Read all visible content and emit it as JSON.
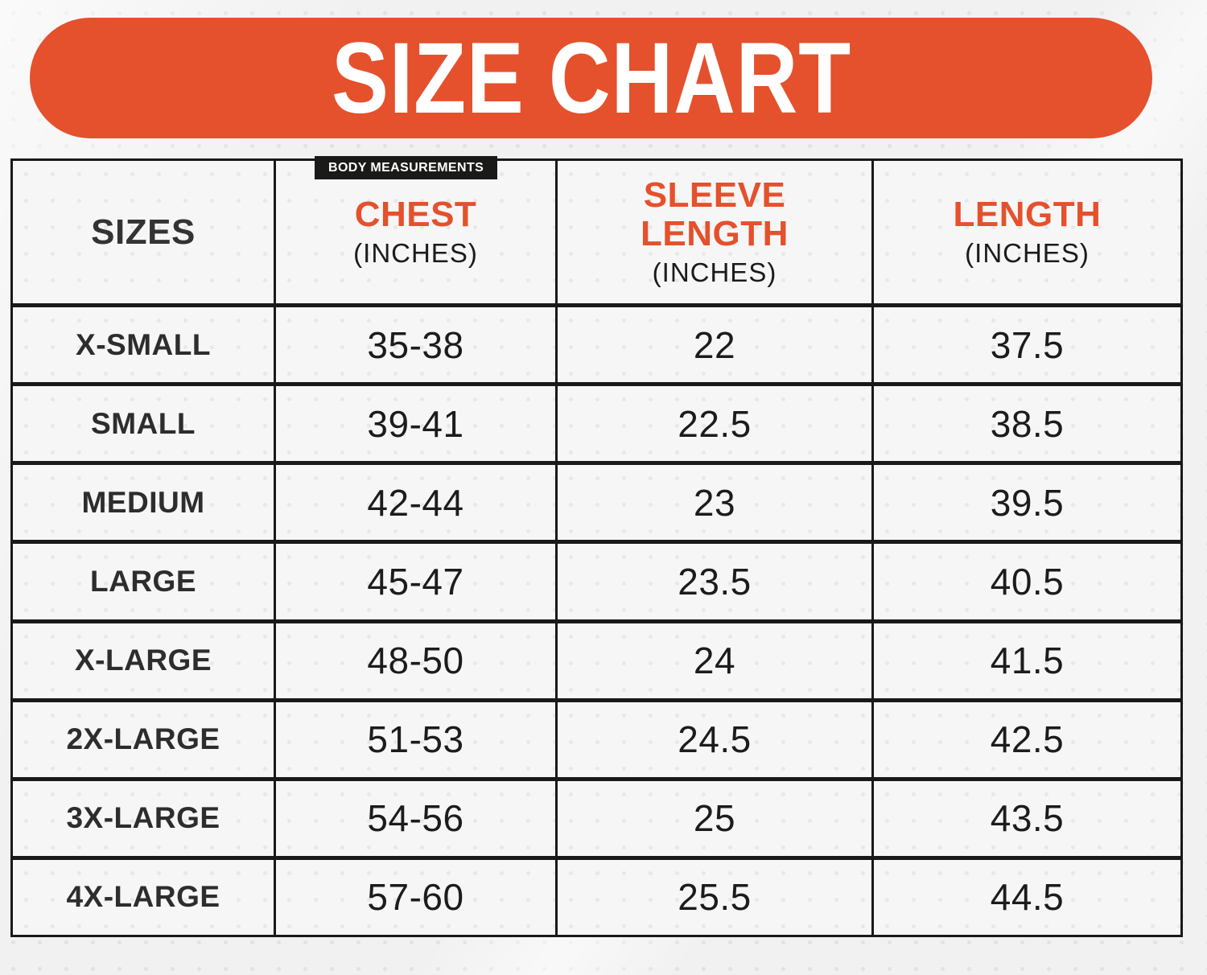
{
  "title": "SIZE CHART",
  "badge_label": "BODY MEASUREMENTS",
  "colors": {
    "accent": "#E4512C",
    "badge_bg": "#1A1A19",
    "table_border": "#191919",
    "title_text": "#FFFFFF"
  },
  "table": {
    "columns": [
      {
        "label": "SIZES",
        "sublabel": ""
      },
      {
        "label": "CHEST",
        "sublabel": "(INCHES)"
      },
      {
        "label": "SLEEVE LENGTH",
        "sublabel": "(INCHES)"
      },
      {
        "label": "LENGTH",
        "sublabel": "(INCHES)"
      }
    ],
    "rows": [
      {
        "size": "X-SMALL",
        "chest": "35-38",
        "sleeve": "22",
        "length": "37.5"
      },
      {
        "size": "SMALL",
        "chest": "39-41",
        "sleeve": "22.5",
        "length": "38.5"
      },
      {
        "size": "MEDIUM",
        "chest": "42-44",
        "sleeve": "23",
        "length": "39.5"
      },
      {
        "size": "LARGE",
        "chest": "45-47",
        "sleeve": "23.5",
        "length": "40.5"
      },
      {
        "size": "X-LARGE",
        "chest": "48-50",
        "sleeve": "24",
        "length": "41.5"
      },
      {
        "size": "2X-LARGE",
        "chest": "51-53",
        "sleeve": "24.5",
        "length": "42.5"
      },
      {
        "size": "3X-LARGE",
        "chest": "54-56",
        "sleeve": "25",
        "length": "43.5"
      },
      {
        "size": "4X-LARGE",
        "chest": "57-60",
        "sleeve": "25.5",
        "length": "44.5"
      }
    ]
  },
  "chart_data": {
    "type": "table",
    "title": "SIZE CHART",
    "note": "Body measurements size chart, all values in inches",
    "columns": [
      "SIZES",
      "CHEST (INCHES)",
      "SLEEVE LENGTH (INCHES)",
      "LENGTH (INCHES)"
    ],
    "rows": [
      [
        "X-SMALL",
        "35-38",
        "22",
        "37.5"
      ],
      [
        "SMALL",
        "39-41",
        "22.5",
        "38.5"
      ],
      [
        "MEDIUM",
        "42-44",
        "23",
        "39.5"
      ],
      [
        "LARGE",
        "45-47",
        "23.5",
        "40.5"
      ],
      [
        "X-LARGE",
        "48-50",
        "24",
        "41.5"
      ],
      [
        "2X-LARGE",
        "51-53",
        "24.5",
        "42.5"
      ],
      [
        "3X-LARGE",
        "54-56",
        "25",
        "43.5"
      ],
      [
        "4X-LARGE",
        "57-60",
        "25.5",
        "44.5"
      ]
    ]
  }
}
